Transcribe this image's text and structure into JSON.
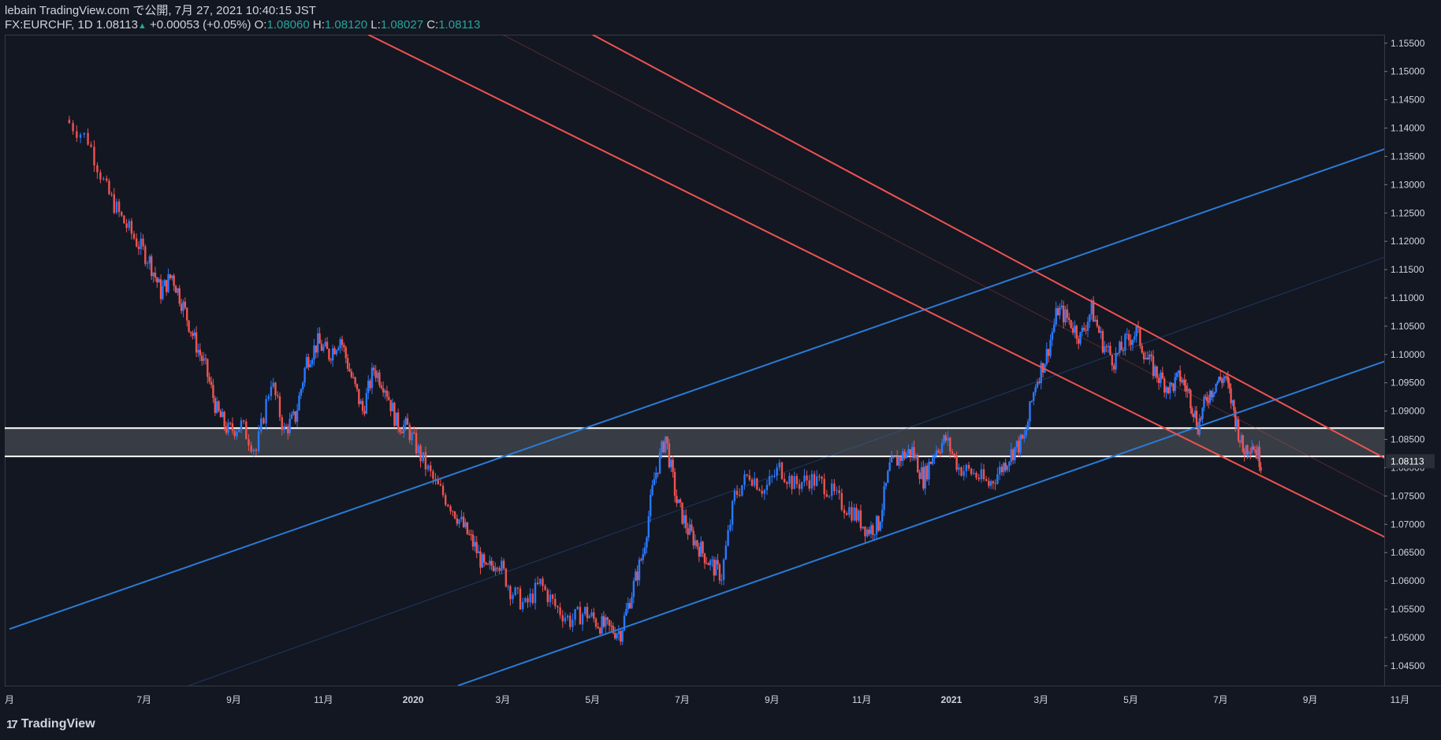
{
  "header": {
    "line1": "lebain TradingView.com で公開, 7月 27, 2021 10:40:15 JST",
    "symbol": "FX:EURCHF, 1D",
    "last": "1.08113",
    "change": "+0.00053 (+0.05%)",
    "o_label": "O:",
    "o_value": "1.08060",
    "h_label": "H:",
    "h_value": "1.08120",
    "l_label": "L:",
    "l_value": "1.08027",
    "c_label": "C:",
    "c_value": "1.08113"
  },
  "footer": {
    "logo_text": "TradingView"
  },
  "colors": {
    "background": "#131722",
    "up": "#2979ff",
    "down": "#ef5350",
    "trend_blue": "#2b7bd6",
    "trend_red": "#ef5350",
    "zone_fill": "#3d4048",
    "zone_border": "#ffffff",
    "price_label_bg": "#2a2e39"
  },
  "chart_data": {
    "type": "candlestick",
    "symbol": "FX:EURCHF",
    "interval": "1D",
    "x_tick_labels": [
      "月",
      "7月",
      "9月",
      "11月",
      "2020",
      "3月",
      "5月",
      "7月",
      "9月",
      "11月",
      "2021",
      "3月",
      "5月",
      "7月",
      "9月",
      "11月"
    ],
    "y_tick_labels": [
      "1.15500",
      "1.15000",
      "1.14500",
      "1.14000",
      "1.13500",
      "1.13000",
      "1.12500",
      "1.12000",
      "1.11500",
      "1.11000",
      "1.10500",
      "1.10000",
      "1.09500",
      "1.09000",
      "1.08500",
      "1.08000",
      "1.07500",
      "1.07000",
      "1.06500",
      "1.06000",
      "1.05500",
      "1.05000",
      "1.04500"
    ],
    "ylim": [
      1.0415,
      1.1565
    ],
    "current_price": "1.08113",
    "close_path": [
      [
        "2019-05",
        1.1415
      ],
      [
        "2019-05",
        1.138
      ],
      [
        "2019-06",
        1.129
      ],
      [
        "2019-06",
        1.124
      ],
      [
        "2019-06",
        1.12
      ],
      [
        "2019-07",
        1.1165
      ],
      [
        "2019-07",
        1.111
      ],
      [
        "2019-07",
        1.114
      ],
      [
        "2019-07",
        1.1085
      ],
      [
        "2019-08",
        1.1025
      ],
      [
        "2019-08",
        1.0975
      ],
      [
        "2019-08",
        1.09
      ],
      [
        "2019-08",
        1.0865
      ],
      [
        "2019-09",
        1.0875
      ],
      [
        "2019-09",
        1.083
      ],
      [
        "2019-09",
        1.0955
      ],
      [
        "2019-10",
        1.0865
      ],
      [
        "2019-10",
        1.089
      ],
      [
        "2019-10",
        1.099
      ],
      [
        "2019-10",
        1.102
      ],
      [
        "2019-11",
        1.1
      ],
      [
        "2019-11",
        1.103
      ],
      [
        "2019-11",
        1.096
      ],
      [
        "2019-11",
        1.09
      ],
      [
        "2019-12",
        1.0975
      ],
      [
        "2019-12",
        1.0945
      ],
      [
        "2019-12",
        1.088
      ],
      [
        "2019-12",
        1.087
      ],
      [
        "2020-01",
        1.082
      ],
      [
        "2020-01",
        1.077
      ],
      [
        "2020-01",
        1.0735
      ],
      [
        "2020-02",
        1.0695
      ],
      [
        "2020-02",
        1.066
      ],
      [
        "2020-02",
        1.0615
      ],
      [
        "2020-02",
        1.064
      ],
      [
        "2020-03",
        1.0585
      ],
      [
        "2020-03",
        1.0555
      ],
      [
        "2020-03",
        1.0595
      ],
      [
        "2020-04",
        1.0555
      ],
      [
        "2020-04",
        1.053
      ],
      [
        "2020-04",
        1.0545
      ],
      [
        "2020-05",
        1.0525
      ],
      [
        "2020-05",
        1.0515
      ],
      [
        "2020-05",
        1.051
      ],
      [
        "2020-05",
        1.058
      ],
      [
        "2020-06",
        1.065
      ],
      [
        "2020-06",
        1.078
      ],
      [
        "2020-06",
        1.0855
      ],
      [
        "2020-06",
        1.074
      ],
      [
        "2020-07",
        1.069
      ],
      [
        "2020-07",
        1.066
      ],
      [
        "2020-07",
        1.063
      ],
      [
        "2020-07",
        1.061
      ],
      [
        "2020-08",
        1.075
      ],
      [
        "2020-08",
        1.079
      ],
      [
        "2020-08",
        1.076
      ],
      [
        "2020-09",
        1.08
      ],
      [
        "2020-09",
        1.077
      ],
      [
        "2020-09",
        1.078
      ],
      [
        "2020-10",
        1.077
      ],
      [
        "2020-10",
        1.074
      ],
      [
        "2020-10",
        1.072
      ],
      [
        "2020-11",
        1.069
      ],
      [
        "2020-11",
        1.07
      ],
      [
        "2020-11",
        1.08
      ],
      [
        "2020-11",
        1.082
      ],
      [
        "2020-12",
        1.083
      ],
      [
        "2020-12",
        1.078
      ],
      [
        "2020-12",
        1.083
      ],
      [
        "2020-12",
        1.085
      ],
      [
        "2021-01",
        1.08
      ],
      [
        "2021-01",
        1.079
      ],
      [
        "2021-01",
        1.077
      ],
      [
        "2021-02",
        1.08
      ],
      [
        "2021-02",
        1.083
      ],
      [
        "2021-02",
        1.085
      ],
      [
        "2021-02",
        1.095
      ],
      [
        "2021-03",
        1.1
      ],
      [
        "2021-03",
        1.108
      ],
      [
        "2021-03",
        1.106
      ],
      [
        "2021-03",
        1.103
      ],
      [
        "2021-04",
        1.108
      ],
      [
        "2021-04",
        1.102
      ],
      [
        "2021-04",
        1.099
      ],
      [
        "2021-04",
        1.102
      ],
      [
        "2021-05",
        1.104
      ],
      [
        "2021-05",
        1.099
      ],
      [
        "2021-05",
        1.096
      ],
      [
        "2021-05",
        1.094
      ],
      [
        "2021-06",
        1.096
      ],
      [
        "2021-06",
        1.093
      ],
      [
        "2021-06",
        1.0875
      ],
      [
        "2021-06",
        1.0925
      ],
      [
        "2021-06",
        1.095
      ],
      [
        "2021-07",
        1.096
      ],
      [
        "2021-07",
        1.09
      ],
      [
        "2021-07",
        1.083
      ],
      [
        "2021-07",
        1.0845
      ],
      [
        "2021-07",
        1.0811
      ]
    ],
    "support_zone": {
      "low": 1.082,
      "high": 1.087
    },
    "channel_lines": [
      {
        "color": "blue",
        "from": [
          "2019-04",
          1.0515
        ],
        "to": [
          "2021-12",
          1.14
        ]
      },
      {
        "color": "blue",
        "from": [
          "2020-02",
          1.0415
        ],
        "to": [
          "2021-12",
          1.1025
        ]
      },
      {
        "color": "red",
        "from": [
          "2019-12",
          1.1565
        ],
        "to": [
          "2021-12",
          1.0625
        ]
      },
      {
        "color": "red",
        "from": [
          "2020-05",
          1.1565
        ],
        "to": [
          "2021-12",
          1.076
        ]
      }
    ]
  }
}
